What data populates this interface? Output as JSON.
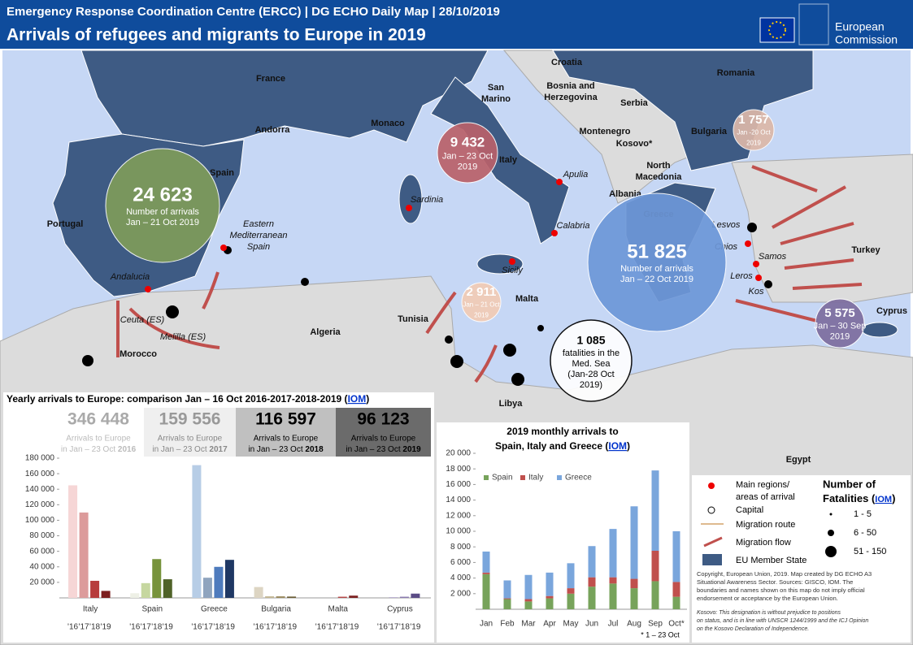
{
  "header": {
    "subtitle": "Emergency Response Coordination  Centre (ERCC) | DG ECHO Daily Map | 28/10/2019",
    "title": "Arrivals of refugees and migrants to Europe in 2019",
    "logo": [
      "European",
      "Commission"
    ]
  },
  "map": {
    "countries": [
      "France",
      "Andorra",
      "Monaco",
      [
        "San",
        "Marino"
      ],
      "Croatia",
      [
        "Bosnia and",
        "Herzegovina"
      ],
      "Serbia",
      "Romania",
      "Bulgaria",
      "Montenegro",
      "Kosovo*",
      [
        "North",
        "Macedonia"
      ],
      "Albania",
      "Italy",
      "Greece",
      "Turkey",
      "Cyprus",
      "Malta",
      "Tunisia",
      "Algeria",
      "Morocco",
      "Libya",
      "Egypt",
      "Spain",
      "Portugal"
    ],
    "regions": [
      "Andalucia",
      "Ceuta (ES)",
      "Melilla (ES)",
      [
        "Eastern",
        "Mediterranean",
        "Spain"
      ],
      "Sardinia",
      "Apulia",
      "Calabria",
      "Sicily",
      "Lesvos",
      "Chios",
      "Samos",
      "Leros",
      "Kos"
    ],
    "bubbles": [
      {
        "value": "24 623",
        "lines": [
          "Number of arrivals",
          "Jan – 21 Oct 2019"
        ]
      },
      {
        "value": "9 432",
        "lines": [
          "Jan – 23 Oct",
          "2019"
        ]
      },
      {
        "value": "1 757",
        "lines": [
          "Jan -20 Oct",
          "2019"
        ]
      },
      {
        "value": "51 825",
        "lines": [
          "Number of arrivals",
          "Jan – 22 Oct 2019"
        ]
      },
      {
        "value": "2 911",
        "lines": [
          "Jan – 21 Oct",
          "2019"
        ]
      },
      {
        "value": "5 575",
        "lines": [
          "Jan – 30 Sep",
          "2019"
        ]
      },
      {
        "value": "1 085",
        "lines": [
          "fatalities in the",
          "Med. Sea",
          "(Jan-28 Oct",
          "2019)"
        ]
      }
    ]
  },
  "chart_data": [
    {
      "type": "grouped_bar",
      "title": "Yearly arrivals to Europe: comparison Jan – 16 Oct 2016-2017-2018-2019 (",
      "source": "IOM",
      "title_end": ")",
      "totals": [
        {
          "value": "346 448",
          "label": "Arrivals to Europe",
          "period": "in Jan – 23 Oct ",
          "year": "2016"
        },
        {
          "value": "159 556",
          "label": "Arrivals to Europe",
          "period": "in Jan – 23 Oct ",
          "year": "2017"
        },
        {
          "value": "116 597",
          "label": "Arrivals to Europe",
          "period": "in Jan – 23 Oct ",
          "year": "2018"
        },
        {
          "value": "96 123",
          "label": "Arrivals to Europe",
          "period": "in Jan – 23 Oct ",
          "year": "2019"
        }
      ],
      "categories": [
        "Italy",
        "Spain",
        "Greece",
        "Bulgaria",
        "Malta",
        "Cyprus"
      ],
      "series": [
        {
          "name": "'16",
          "colors": [
            "#f6d6d6",
            "#eef0e6",
            "#b7cde6",
            "#ddd5c3",
            "#f1d3d3",
            "#ddd8e8"
          ],
          "values": [
            145000,
            6000,
            171000,
            14000,
            0,
            0
          ]
        },
        {
          "name": "'17",
          "colors": [
            "#dc9b9b",
            "#c6d7a0",
            "#8fa4be",
            "#c2b592",
            "#d99c9c",
            "#b9aed0"
          ],
          "values": [
            110000,
            19000,
            26000,
            2000,
            0,
            1000
          ]
        },
        {
          "name": "'18",
          "colors": [
            "#b73c3c",
            "#77933c",
            "#4e7bbd",
            "#9a8a5e",
            "#b64848",
            "#8b7bb0"
          ],
          "values": [
            22000,
            50000,
            40000,
            2000,
            1500,
            1500
          ]
        },
        {
          "name": "'19",
          "colors": [
            "#7c1f1f",
            "#4f6228",
            "#1f3864",
            "#6b5d35",
            "#7e2222",
            "#5b4c86"
          ],
          "values": [
            9000,
            24000,
            49000,
            1700,
            2900,
            5500
          ]
        }
      ],
      "ylim": [
        0,
        180000
      ],
      "yticks": [
        {
          "value": 20000,
          "label": "20 000"
        },
        {
          "value": 40000,
          "label": "40 000"
        },
        {
          "value": 60000,
          "label": "60 000"
        },
        {
          "value": 80000,
          "label": "80 000"
        },
        {
          "value": 100000,
          "label": "100 000"
        },
        {
          "value": 120000,
          "label": "120 000"
        },
        {
          "value": 140000,
          "label": "140 000"
        },
        {
          "value": 160000,
          "label": "160 000"
        },
        {
          "value": 180000,
          "label": "180 000"
        }
      ]
    },
    {
      "type": "stacked_bar",
      "title": [
        "2019 monthly arrivals to",
        "Spain, Italy and Greece ("
      ],
      "source": "IOM",
      "title_end": ")",
      "categories": [
        "Jan",
        "Feb",
        "Mar",
        "Apr",
        "May",
        "Jun",
        "Jul",
        "Aug",
        "Sep",
        "Oct*"
      ],
      "note": "* 1 – 23 Oct",
      "series": [
        {
          "name": "Spain",
          "color": "#77a35b",
          "values": [
            4500,
            1300,
            1000,
            1400,
            2000,
            2900,
            3300,
            2700,
            3600,
            1600
          ]
        },
        {
          "name": "Italy",
          "color": "#c0504d",
          "values": [
            200,
            100,
            300,
            300,
            700,
            1200,
            800,
            1200,
            3900,
            1900
          ]
        },
        {
          "name": "Greece",
          "color": "#7aa6dc",
          "values": [
            2700,
            2300,
            3100,
            3000,
            3200,
            4000,
            6200,
            9300,
            10300,
            6500
          ]
        }
      ],
      "ylim": [
        0,
        20000
      ],
      "yticks": [
        {
          "value": 2000,
          "label": "2 000"
        },
        {
          "value": 4000,
          "label": "4 000"
        },
        {
          "value": 6000,
          "label": "6 000"
        },
        {
          "value": 8000,
          "label": "8 000"
        },
        {
          "value": 10000,
          "label": "10 000"
        },
        {
          "value": 12000,
          "label": "12 000"
        },
        {
          "value": 14000,
          "label": "14 000"
        },
        {
          "value": 16000,
          "label": "16 000"
        },
        {
          "value": 18000,
          "label": "18 000"
        },
        {
          "value": 20000,
          "label": "20 000"
        }
      ]
    }
  ],
  "legend": {
    "items": [
      [
        "Main regions/",
        "areas of arrival"
      ],
      "Capital",
      "Migration route",
      "Migration flow",
      "EU Member State"
    ],
    "fatalities_title": [
      "Number of",
      "Fatalities ("
    ],
    "fatalities_source": "IOM",
    "fatalities_end": ")",
    "sizes": [
      "1 - 5",
      "6 - 50",
      "51 - 150"
    ],
    "copyright": [
      "Copyright, European  Union, 2019. Map created  by DG ECHO A3",
      "Situational Awareness Sector. Sources: GISCO, IOM. The",
      "boundaries and names shown on this map do not imply official",
      "endorsement or acceptance by the European  Union."
    ],
    "kosovo": [
      "Kosovo: This designation is without prejudice to positions",
      "on status, and is in line with UNSCR 1244/1999 and the ICJ Opinion",
      "on the Kosovo Declaration of Independence."
    ]
  }
}
